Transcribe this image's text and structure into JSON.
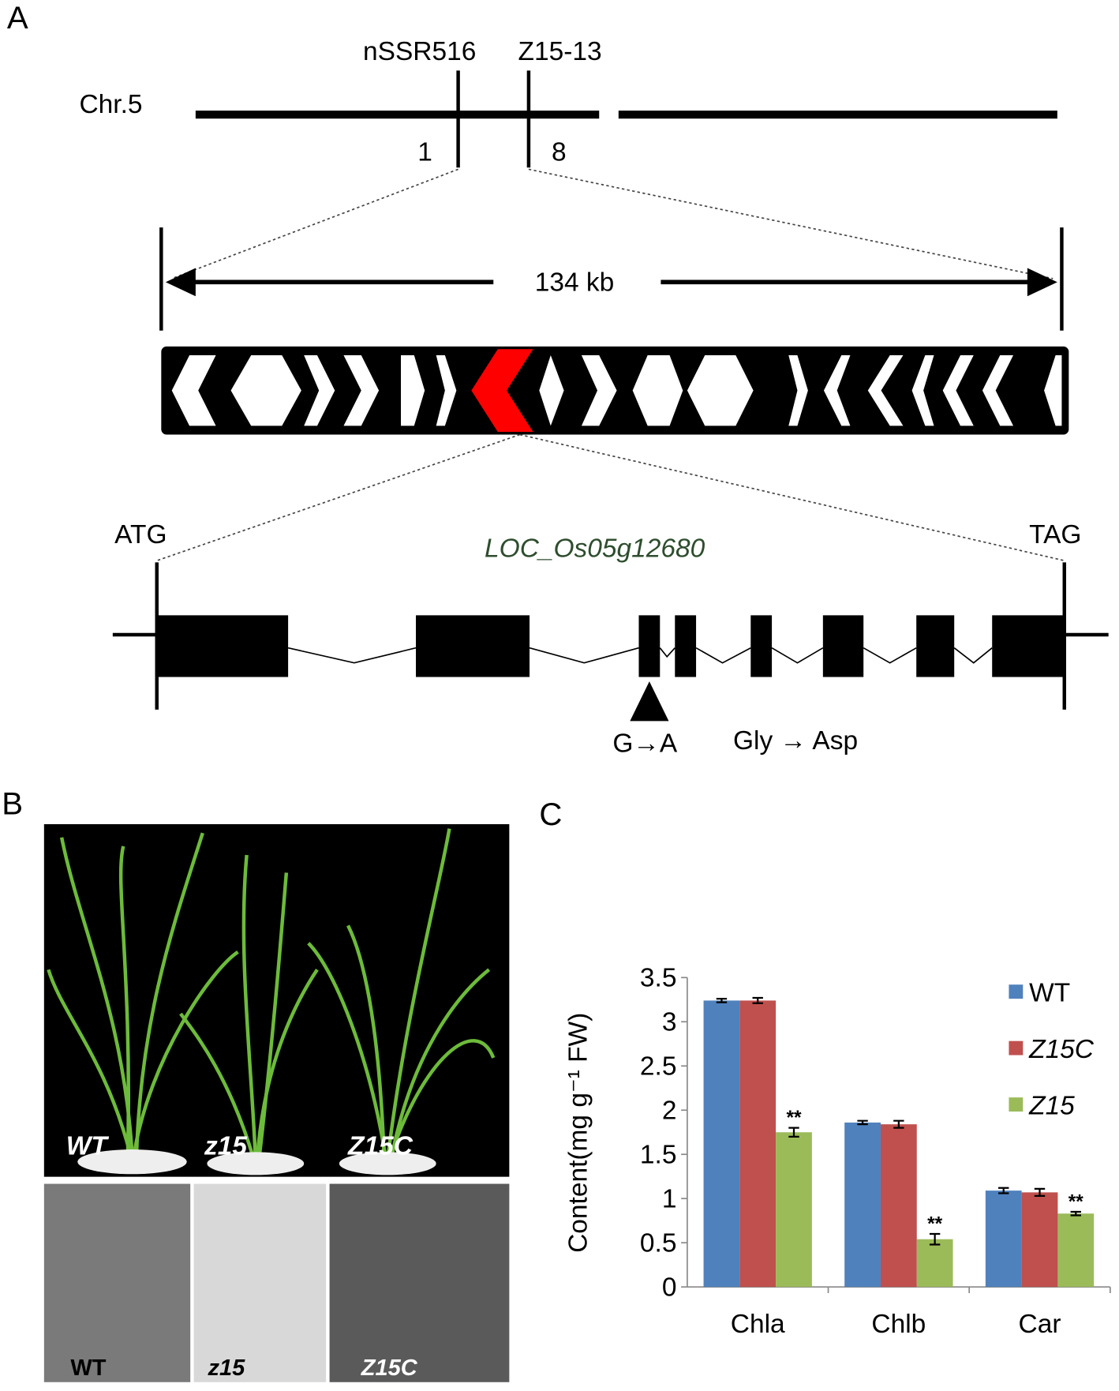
{
  "panel_a": {
    "label": "A",
    "chromosome": "Chr.5",
    "marker_left": "nSSR516",
    "marker_right": "Z15-13",
    "recombinants_left": "1",
    "recombinants_right": "8",
    "interval": "134 kb",
    "start_codon": "ATG",
    "stop_codon": "TAG",
    "gene": "LOC_Os05g12680",
    "mutation": "G→A",
    "substitution": "Gly → Asp"
  },
  "panel_b": {
    "label": "B",
    "plants": [
      "WT",
      "z15",
      "Z15C"
    ],
    "sections": [
      "WT",
      "z15",
      "Z15C"
    ]
  },
  "panel_c": {
    "label": "C"
  },
  "chart_data": {
    "type": "bar",
    "ylabel": "Content(mg g⁻¹ FW)",
    "categories": [
      "Chla",
      "Chlb",
      "Car"
    ],
    "series": [
      {
        "name": "WT",
        "color": "#4f81bd",
        "values": [
          3.24,
          1.86,
          1.09
        ],
        "errors": [
          0.02,
          0.02,
          0.03
        ]
      },
      {
        "name": "Z15C",
        "color": "#c0504d",
        "values": [
          3.24,
          1.84,
          1.07
        ],
        "errors": [
          0.03,
          0.04,
          0.04
        ]
      },
      {
        "name": "Z15",
        "color": "#9bbb59",
        "values": [
          1.75,
          0.54,
          0.83
        ],
        "errors": [
          0.05,
          0.06,
          0.02
        ],
        "value_labels": [
          "**",
          "**",
          "**"
        ]
      }
    ],
    "ylim": [
      0,
      3.5
    ],
    "yticks": [
      0,
      0.5,
      1,
      1.5,
      2,
      2.5,
      3,
      3.5
    ],
    "legend": "upper right"
  }
}
